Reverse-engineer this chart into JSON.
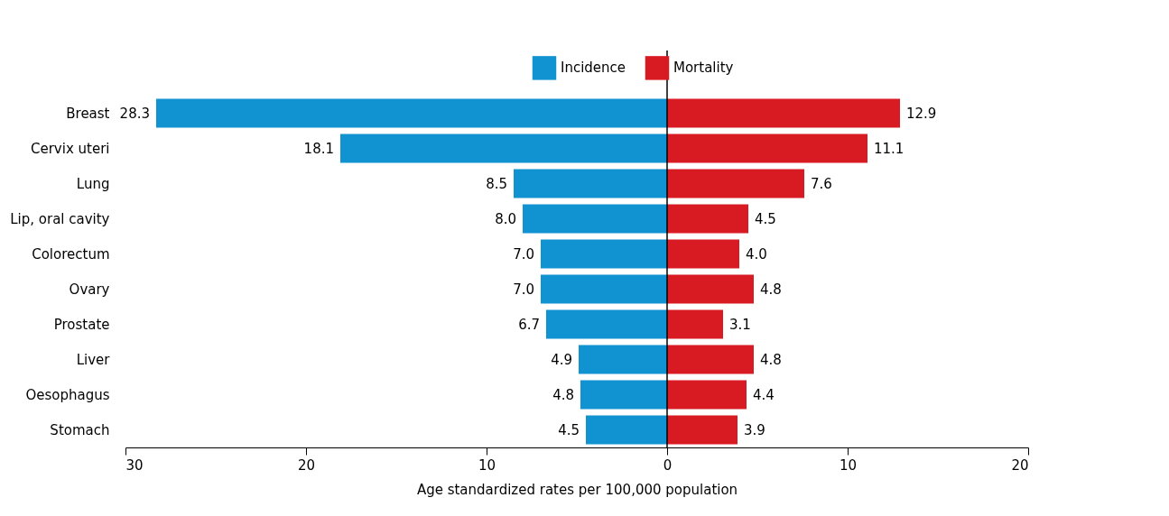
{
  "chart_data": {
    "type": "bar",
    "orientation": "horizontal",
    "xlabel": "Age standardized rates per 100,000 population",
    "categories": [
      "Breast",
      "Cervix uteri",
      "Lung",
      "Lip, oral cavity",
      "Colorectum",
      "Ovary",
      "Prostate",
      "Liver",
      "Oesophagus",
      "Stomach"
    ],
    "series": [
      {
        "name": "Incidence",
        "color": "#1192d1",
        "values": [
          28.3,
          18.1,
          8.5,
          8.0,
          7.0,
          7.0,
          6.7,
          4.9,
          4.8,
          4.5
        ],
        "base": [
          -28.3,
          -18.1,
          -8.5,
          -8.0,
          -7.0,
          -7.0,
          -6.7,
          -4.9,
          -4.8,
          -4.5
        ],
        "value_labels": [
          "28.3",
          "18.1",
          "8.5",
          "8.0",
          "7.0",
          "7.0",
          "6.7",
          "4.9",
          "4.8",
          "4.5"
        ]
      },
      {
        "name": "Mortality",
        "color": "#d81b22",
        "values": [
          12.9,
          11.1,
          7.6,
          4.5,
          4.0,
          4.8,
          3.1,
          4.8,
          4.4,
          3.9
        ],
        "value_labels": [
          "12.9",
          "11.1",
          "7.6",
          "4.5",
          "4.0",
          "4.8",
          "3.1",
          "4.8",
          "4.4",
          "3.9"
        ]
      }
    ],
    "xlim": [
      -30,
      20
    ],
    "xticks": [
      {
        "value": -30,
        "label": "30"
      },
      {
        "value": -20,
        "label": "20"
      },
      {
        "value": -10,
        "label": "10"
      },
      0,
      10,
      20
    ],
    "ref_lines": [
      {
        "axis": "x",
        "value": 0,
        "color": "#000000"
      }
    ],
    "legend": "top",
    "grid": false
  }
}
